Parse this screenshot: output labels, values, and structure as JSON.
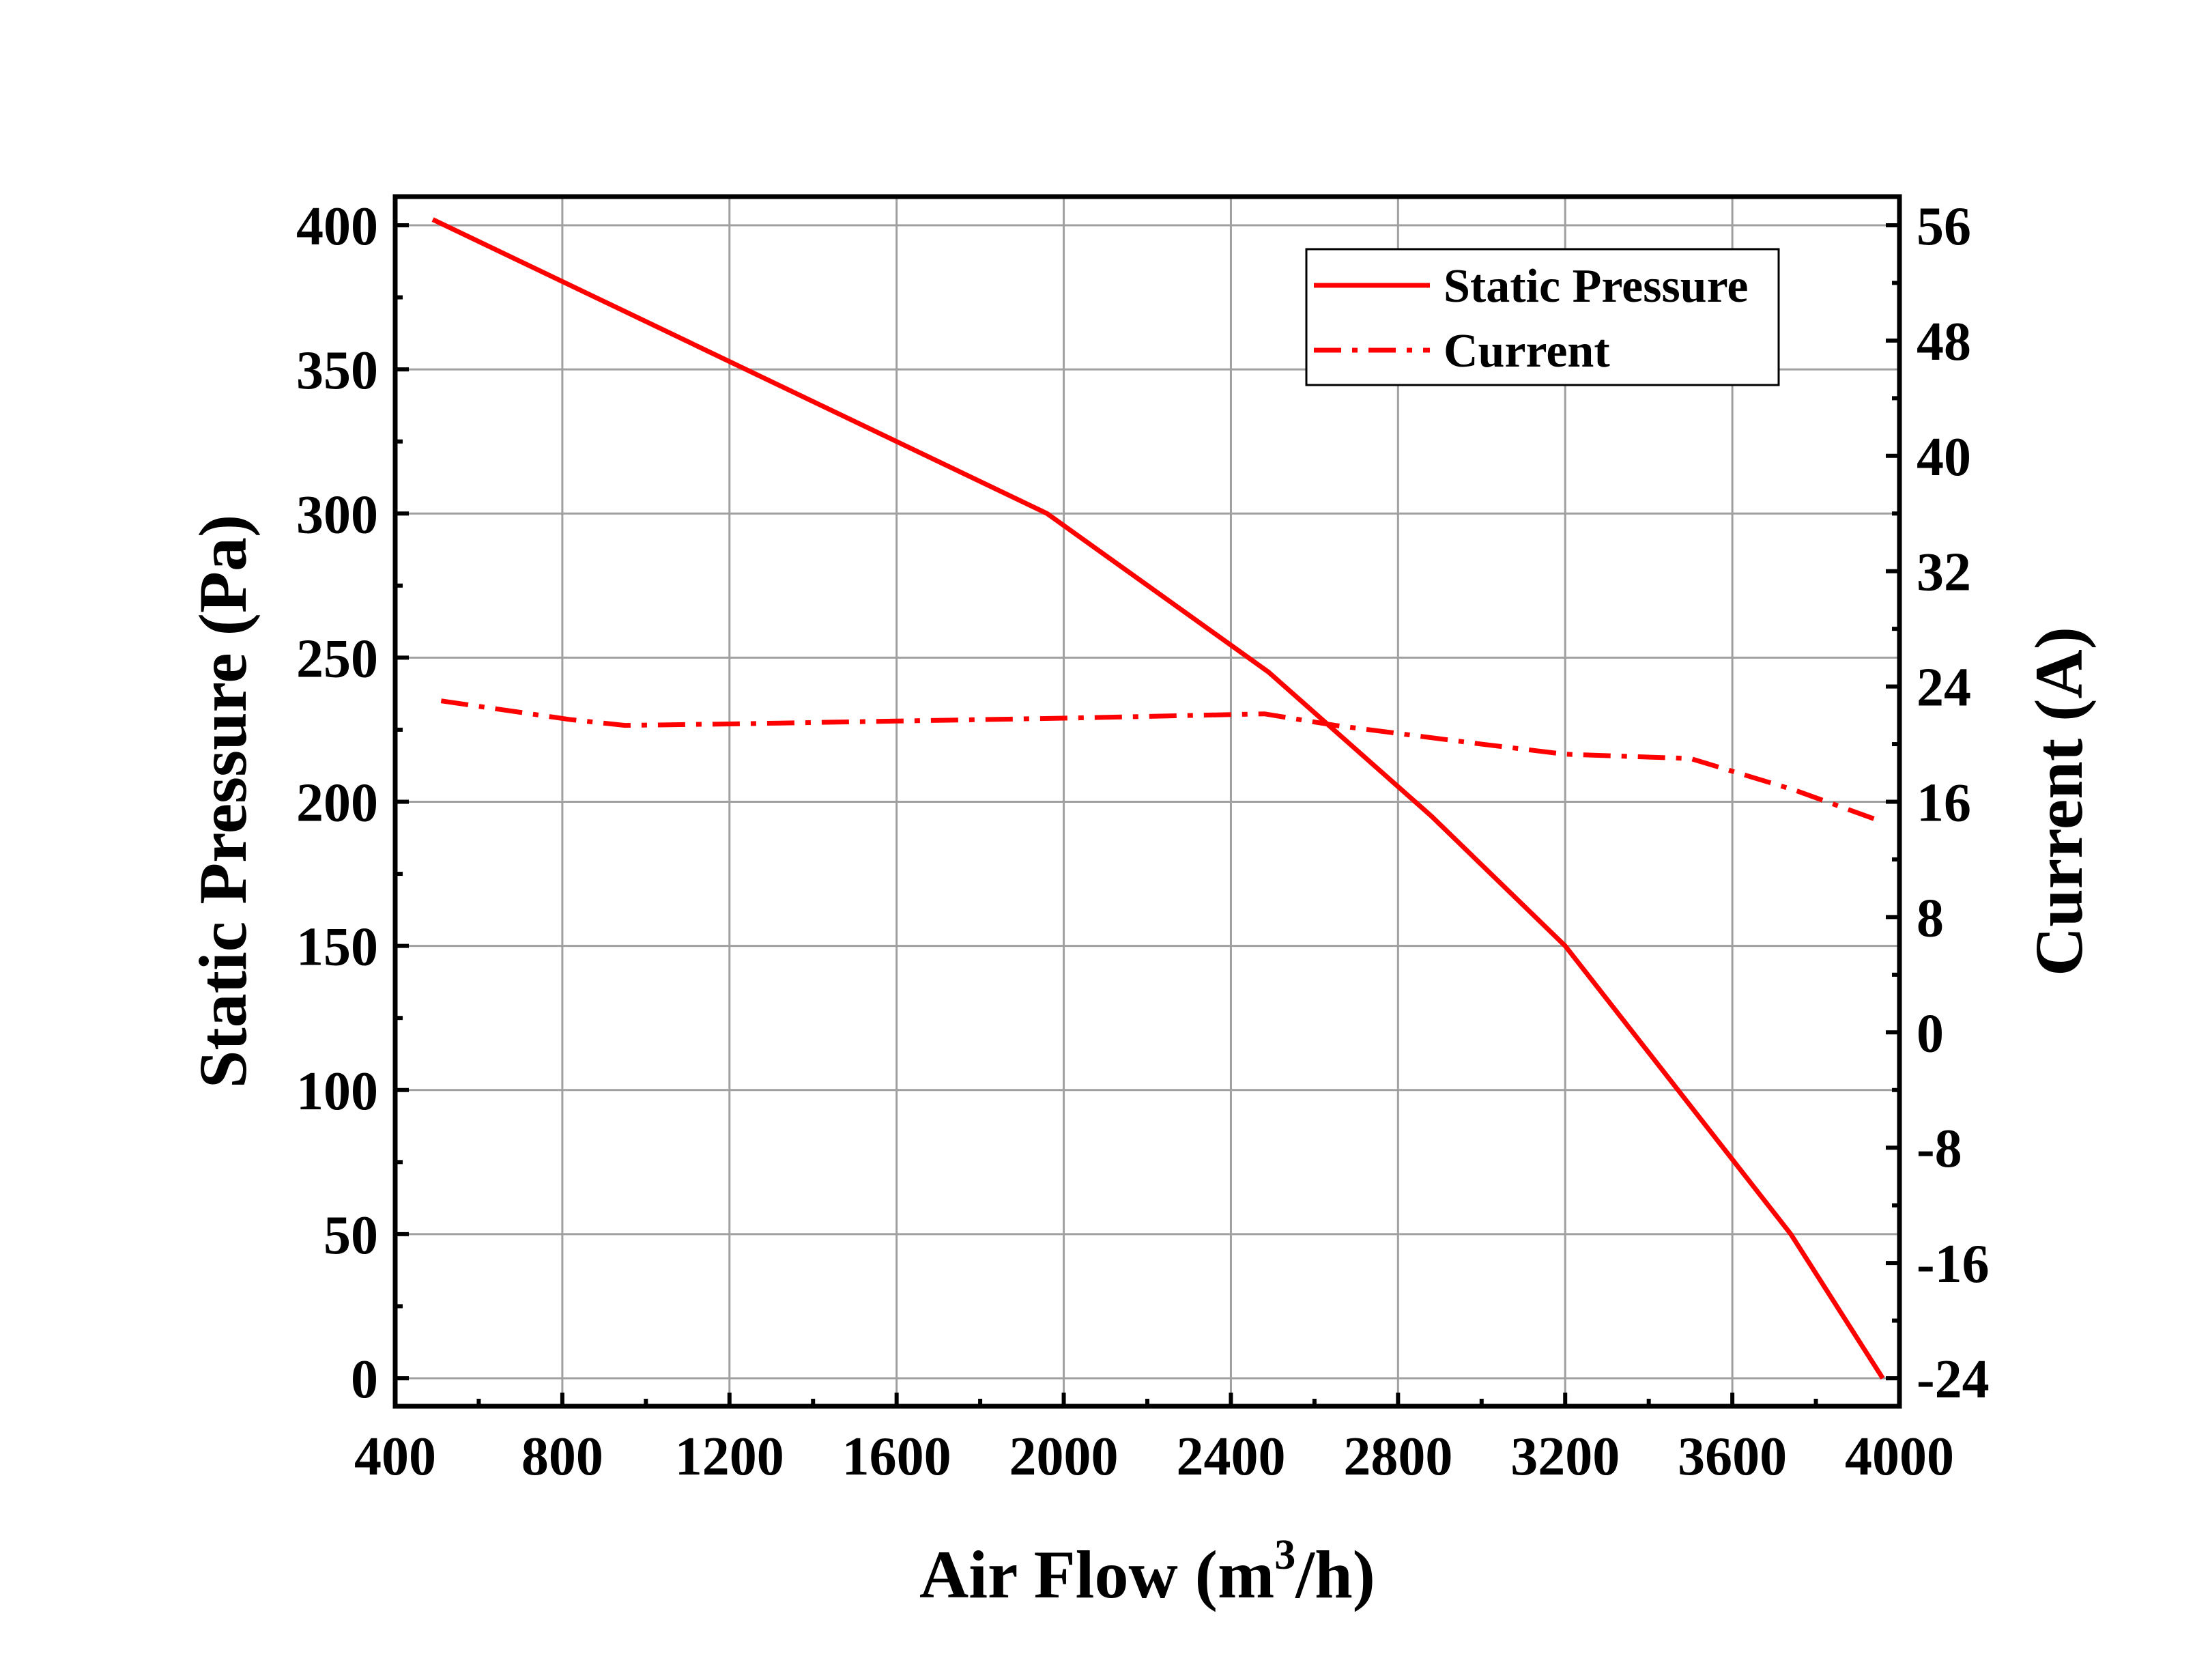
{
  "chart_data": {
    "type": "line",
    "title": "",
    "xlabel": "Air Flow (m",
    "xlabel_sup": "3",
    "xlabel_tail": "/h)",
    "ylabel": "Static Pressure (Pa)",
    "y2label": "Current (A)",
    "xlim": [
      400,
      4000
    ],
    "ylim": [
      0,
      400
    ],
    "y2lim": [
      -24,
      56
    ],
    "xticks": [
      "400",
      "800",
      "1200",
      "1600",
      "2000",
      "2400",
      "2800",
      "3200",
      "3600",
      "4000"
    ],
    "yticks": [
      "0",
      "50",
      "100",
      "150",
      "200",
      "250",
      "300",
      "350",
      "400"
    ],
    "y2ticks": [
      "-24",
      "-16",
      "-8",
      "0",
      "8",
      "16",
      "24",
      "32",
      "40",
      "48",
      "56"
    ],
    "grid": true,
    "legend_position": "top-right",
    "series": [
      {
        "name": "Static Pressure",
        "axis": "left",
        "style": "solid",
        "color": "#ff0000",
        "x": [
          490,
          1960,
          2490,
          2880,
          3200,
          3740,
          3960
        ],
        "y": [
          402,
          300,
          245,
          195,
          150,
          50,
          0
        ]
      },
      {
        "name": "Current",
        "axis": "right",
        "style": "dash-dot",
        "color": "#ff0000",
        "x": [
          510,
          820,
          950,
          1200,
          1600,
          2000,
          2480,
          2650,
          3000,
          3200,
          3500,
          3750,
          3960
        ],
        "y": [
          23.0,
          21.7,
          21.3,
          21.4,
          21.6,
          21.8,
          22.1,
          21.3,
          20.0,
          19.3,
          19.0,
          16.8,
          14.6
        ]
      }
    ]
  }
}
